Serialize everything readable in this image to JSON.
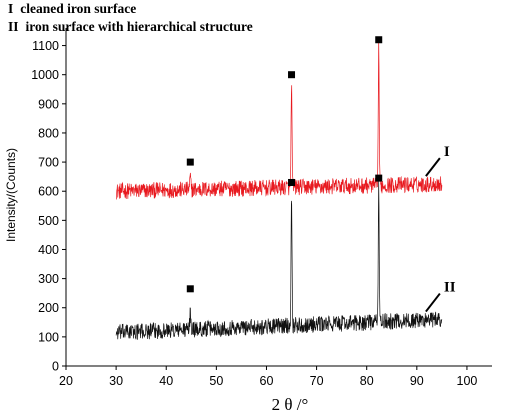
{
  "chart_data": {
    "type": "line",
    "xlabel": "2 θ /°",
    "ylabel": "Intensity/(Counts)",
    "xlim": [
      20,
      105
    ],
    "ylim": [
      0,
      1150
    ],
    "x_ticks": [
      20,
      30,
      40,
      50,
      60,
      70,
      80,
      90,
      100
    ],
    "y_ticks": [
      0,
      100,
      200,
      300,
      400,
      500,
      600,
      700,
      800,
      900,
      1000,
      1100
    ],
    "grid": false,
    "legend": [
      {
        "numeral": "I",
        "text": "cleaned iron surface"
      },
      {
        "numeral": "II",
        "text": "iron surface with hierarchical structure"
      }
    ],
    "series": [
      {
        "label": "I",
        "color": "#e8191f",
        "x_range": [
          30,
          95
        ],
        "baseline_start": 600,
        "baseline_end": 625,
        "noise": 28,
        "peaks": [
          {
            "x": 44.8,
            "y": 650,
            "marker_y": 700
          },
          {
            "x": 65.0,
            "y": 980,
            "marker_y": 1000
          },
          {
            "x": 82.4,
            "y": 1110,
            "marker_y": 1120
          }
        ]
      },
      {
        "label": "II",
        "color": "#111111",
        "x_range": [
          30,
          95
        ],
        "baseline_start": 115,
        "baseline_end": 160,
        "noise": 28,
        "peaks": [
          {
            "x": 44.8,
            "y": 200,
            "marker_y": 265
          },
          {
            "x": 65.0,
            "y": 610,
            "marker_y": 630
          },
          {
            "x": 82.4,
            "y": 640,
            "marker_y": 645
          }
        ]
      }
    ]
  }
}
